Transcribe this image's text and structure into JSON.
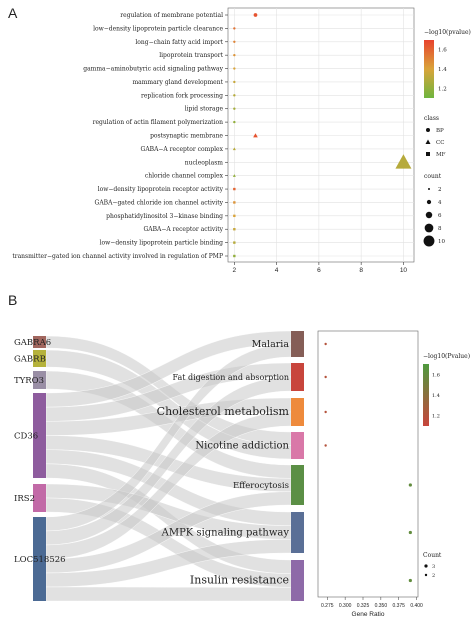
{
  "panel_a_label": "A",
  "panel_b_label": "B",
  "chart_data": [
    {
      "type": "scatter",
      "title": "",
      "xlabel": "",
      "ylabel": "",
      "xlim": [
        1.7,
        10.5
      ],
      "xticks": [
        2,
        4,
        6,
        8,
        10
      ],
      "grid": true,
      "categories": [
        "regulation of membrane potential",
        "low−density lipoprotein particle clearance",
        "long−chain fatty acid import",
        "lipoprotein transport",
        "gamma−aminobutyric acid signaling pathway",
        "mammary gland development",
        "replication fork processing",
        "lipid storage",
        "regulation of actin filament polymerization",
        "postsynaptic membrane",
        "GABA−A receptor complex",
        "nucleoplasm",
        "chloride channel complex",
        "low−density lipoprotein receptor activity",
        "GABA−gated chloride ion channel activity",
        "phosphatidylinositol 3−kinase binding",
        "GABA−A receptor activity",
        "low−density lipoprotein particle binding",
        "transmitter−gated ion channel activity involved in regulation of PMP"
      ],
      "points": [
        {
          "term": "regulation of membrane potential",
          "x": 3,
          "class": "BP",
          "pvalue": 1.65
        },
        {
          "term": "low−density lipoprotein particle clearance",
          "x": 2,
          "class": "BP",
          "pvalue": 1.55
        },
        {
          "term": "long−chain fatty acid import",
          "x": 2,
          "class": "BP",
          "pvalue": 1.5
        },
        {
          "term": "lipoprotein transport",
          "x": 2,
          "class": "BP",
          "pvalue": 1.45
        },
        {
          "term": "gamma−aminobutyric acid signaling pathway",
          "x": 2,
          "class": "BP",
          "pvalue": 1.4
        },
        {
          "term": "mammary gland development",
          "x": 2,
          "class": "BP",
          "pvalue": 1.35
        },
        {
          "term": "replication fork processing",
          "x": 2,
          "class": "BP",
          "pvalue": 1.3
        },
        {
          "term": "lipid storage",
          "x": 2,
          "class": "BP",
          "pvalue": 1.25
        },
        {
          "term": "regulation of actin filament polymerization",
          "x": 2,
          "class": "BP",
          "pvalue": 1.2
        },
        {
          "term": "postsynaptic membrane",
          "x": 3,
          "class": "CC",
          "pvalue": 1.65
        },
        {
          "term": "GABA−A receptor complex",
          "x": 2,
          "class": "CC",
          "pvalue": 1.3
        },
        {
          "term": "nucleoplasm",
          "x": 10,
          "class": "CC",
          "pvalue": 1.3
        },
        {
          "term": "chloride channel complex",
          "x": 2,
          "class": "CC",
          "pvalue": 1.2
        },
        {
          "term": "low−density lipoprotein receptor activity",
          "x": 2,
          "class": "MF",
          "pvalue": 1.6
        },
        {
          "term": "GABA−gated chloride ion channel activity",
          "x": 2,
          "class": "MF",
          "pvalue": 1.45
        },
        {
          "term": "phosphatidylinositol 3−kinase binding",
          "x": 2,
          "class": "MF",
          "pvalue": 1.4
        },
        {
          "term": "GABA−A receptor activity",
          "x": 2,
          "class": "MF",
          "pvalue": 1.35
        },
        {
          "term": "low−density lipoprotein particle binding",
          "x": 2,
          "class": "MF",
          "pvalue": 1.3
        },
        {
          "term": "transmitter−gated ion channel activity involved in regulation of PMP",
          "x": 2,
          "class": "MF",
          "pvalue": 1.2
        }
      ],
      "color_legend": {
        "title": "−log10(pvalue)",
        "ticks": [
          1.2,
          1.4,
          1.6
        ],
        "range": [
          1.1,
          1.7
        ],
        "low_color": "#6fb53e",
        "high_color": "#e8432d"
      },
      "shape_legend": {
        "title": "class",
        "items": [
          "BP",
          "CC",
          "MF"
        ]
      },
      "size_legend": {
        "title": "count",
        "items": [
          2,
          4,
          6,
          8,
          10
        ]
      },
      "legend_position": "right"
    },
    {
      "type": "sankey",
      "genes": [
        {
          "name": "GABRA6",
          "color": "#a1665e"
        },
        {
          "name": "GABRB",
          "color": "#b5b23b"
        },
        {
          "name": "TYRO3",
          "color": "#9a8fa6"
        },
        {
          "name": "CD36",
          "color": "#8e5c9e"
        },
        {
          "name": "IRS2",
          "color": "#c26aa7"
        },
        {
          "name": "LOC518526",
          "color": "#4b6a94"
        }
      ],
      "pathways": [
        {
          "name": "Malaria",
          "color": "#855e57"
        },
        {
          "name": "Fat digestion and absorption",
          "color": "#c8453c"
        },
        {
          "name": "Cholesterol metabolism",
          "color": "#ee8a3c"
        },
        {
          "name": "Nicotine addiction",
          "color": "#d978a8"
        },
        {
          "name": "Efferocytosis",
          "color": "#5b8f45"
        },
        {
          "name": "AMPK signaling pathway",
          "color": "#5a6f96"
        },
        {
          "name": "Insulin resistance",
          "color": "#8e6aa8"
        }
      ],
      "links": [
        {
          "gene": "GABRA6",
          "pathway": "Nicotine addiction"
        },
        {
          "gene": "GABRB",
          "pathway": "Nicotine addiction"
        },
        {
          "gene": "TYRO3",
          "pathway": "Efferocytosis"
        },
        {
          "gene": "CD36",
          "pathway": "Malaria"
        },
        {
          "gene": "CD36",
          "pathway": "Fat digestion and absorption"
        },
        {
          "gene": "CD36",
          "pathway": "Cholesterol metabolism"
        },
        {
          "gene": "CD36",
          "pathway": "Efferocytosis"
        },
        {
          "gene": "CD36",
          "pathway": "AMPK signaling pathway"
        },
        {
          "gene": "CD36",
          "pathway": "Insulin resistance"
        },
        {
          "gene": "IRS2",
          "pathway": "AMPK signaling pathway"
        },
        {
          "gene": "IRS2",
          "pathway": "Insulin resistance"
        },
        {
          "gene": "LOC518526",
          "pathway": "Malaria"
        },
        {
          "gene": "LOC518526",
          "pathway": "Fat digestion and absorption"
        },
        {
          "gene": "LOC518526",
          "pathway": "Cholesterol metabolism"
        },
        {
          "gene": "LOC518526",
          "pathway": "Efferocytosis"
        },
        {
          "gene": "LOC518526",
          "pathway": "AMPK signaling pathway"
        },
        {
          "gene": "LOC518526",
          "pathway": "Insulin resistance"
        }
      ]
    },
    {
      "type": "scatter",
      "xlabel": "Gene Ratio",
      "xlim": [
        0.262,
        0.402
      ],
      "xticks": [
        0.275,
        0.3,
        0.325,
        0.35,
        0.375,
        0.4
      ],
      "xtick_labels": [
        "0.275",
        "0.300",
        "0.325",
        "0.350",
        "0.375",
        "0.400"
      ],
      "categories": [
        "Malaria",
        "Fat digestion and absorption",
        "Cholesterol metabolism",
        "Nicotine addiction",
        "Efferocytosis",
        "AMPK signaling pathway",
        "Insulin resistance"
      ],
      "points": [
        {
          "pathway": "Malaria",
          "x": 0.2727,
          "count": 2,
          "pvalue": 1.2
        },
        {
          "pathway": "Fat digestion and absorption",
          "x": 0.2727,
          "count": 2,
          "pvalue": 1.2
        },
        {
          "pathway": "Cholesterol metabolism",
          "x": 0.2727,
          "count": 2,
          "pvalue": 1.2
        },
        {
          "pathway": "Nicotine addiction",
          "x": 0.2727,
          "count": 2,
          "pvalue": 1.2
        },
        {
          "pathway": "Efferocytosis",
          "x": 0.3913,
          "count": 3,
          "pvalue": 1.6
        },
        {
          "pathway": "AMPK signaling pathway",
          "x": 0.3913,
          "count": 3,
          "pvalue": 1.6
        },
        {
          "pathway": "Insulin resistance",
          "x": 0.3913,
          "count": 3,
          "pvalue": 1.6
        }
      ],
      "color_legend": {
        "title": "−log10(Pvalue)",
        "ticks": [
          1.2,
          1.4,
          1.6
        ],
        "range": [
          1.1,
          1.7
        ],
        "low_color": "#c8453c",
        "high_color": "#4e9a3e"
      },
      "size_legend": {
        "title": "Count",
        "items": [
          3,
          2
        ]
      },
      "legend_position": "right"
    }
  ]
}
